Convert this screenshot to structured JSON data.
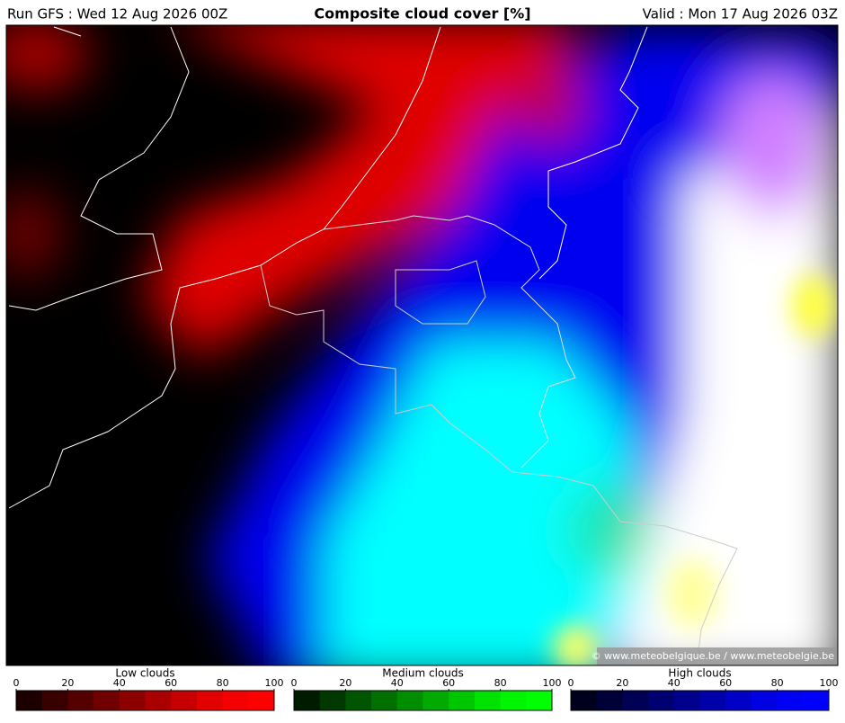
{
  "header": {
    "left": "Run GFS : Wed 12 Aug 2026 00Z",
    "title": "Composite cloud cover [%]",
    "right": "Valid : Mon 17 Aug 2026 03Z"
  },
  "credit": "© www.meteobelgique.be / www.meteobelgie.be",
  "legends": [
    {
      "name": "Low clouds",
      "ticks": [
        0,
        20,
        40,
        60,
        80,
        100
      ],
      "colors": [
        "#1c0000",
        "#380000",
        "#550000",
        "#710000",
        "#8d0000",
        "#aa0000",
        "#c60000",
        "#e20000",
        "#f50000",
        "#ff0000"
      ]
    },
    {
      "name": "Medium clouds",
      "ticks": [
        0,
        20,
        40,
        60,
        80,
        100
      ],
      "colors": [
        "#001c00",
        "#003800",
        "#005500",
        "#007100",
        "#008d00",
        "#00aa00",
        "#00c600",
        "#00e200",
        "#00f500",
        "#00ff00"
      ]
    },
    {
      "name": "High clouds",
      "ticks": [
        0,
        20,
        40,
        60,
        80,
        100
      ],
      "colors": [
        "#00001c",
        "#000038",
        "#000055",
        "#000071",
        "#00008d",
        "#0000aa",
        "#0000c6",
        "#0000e2",
        "#0000f5",
        "#0000ff"
      ]
    }
  ]
}
